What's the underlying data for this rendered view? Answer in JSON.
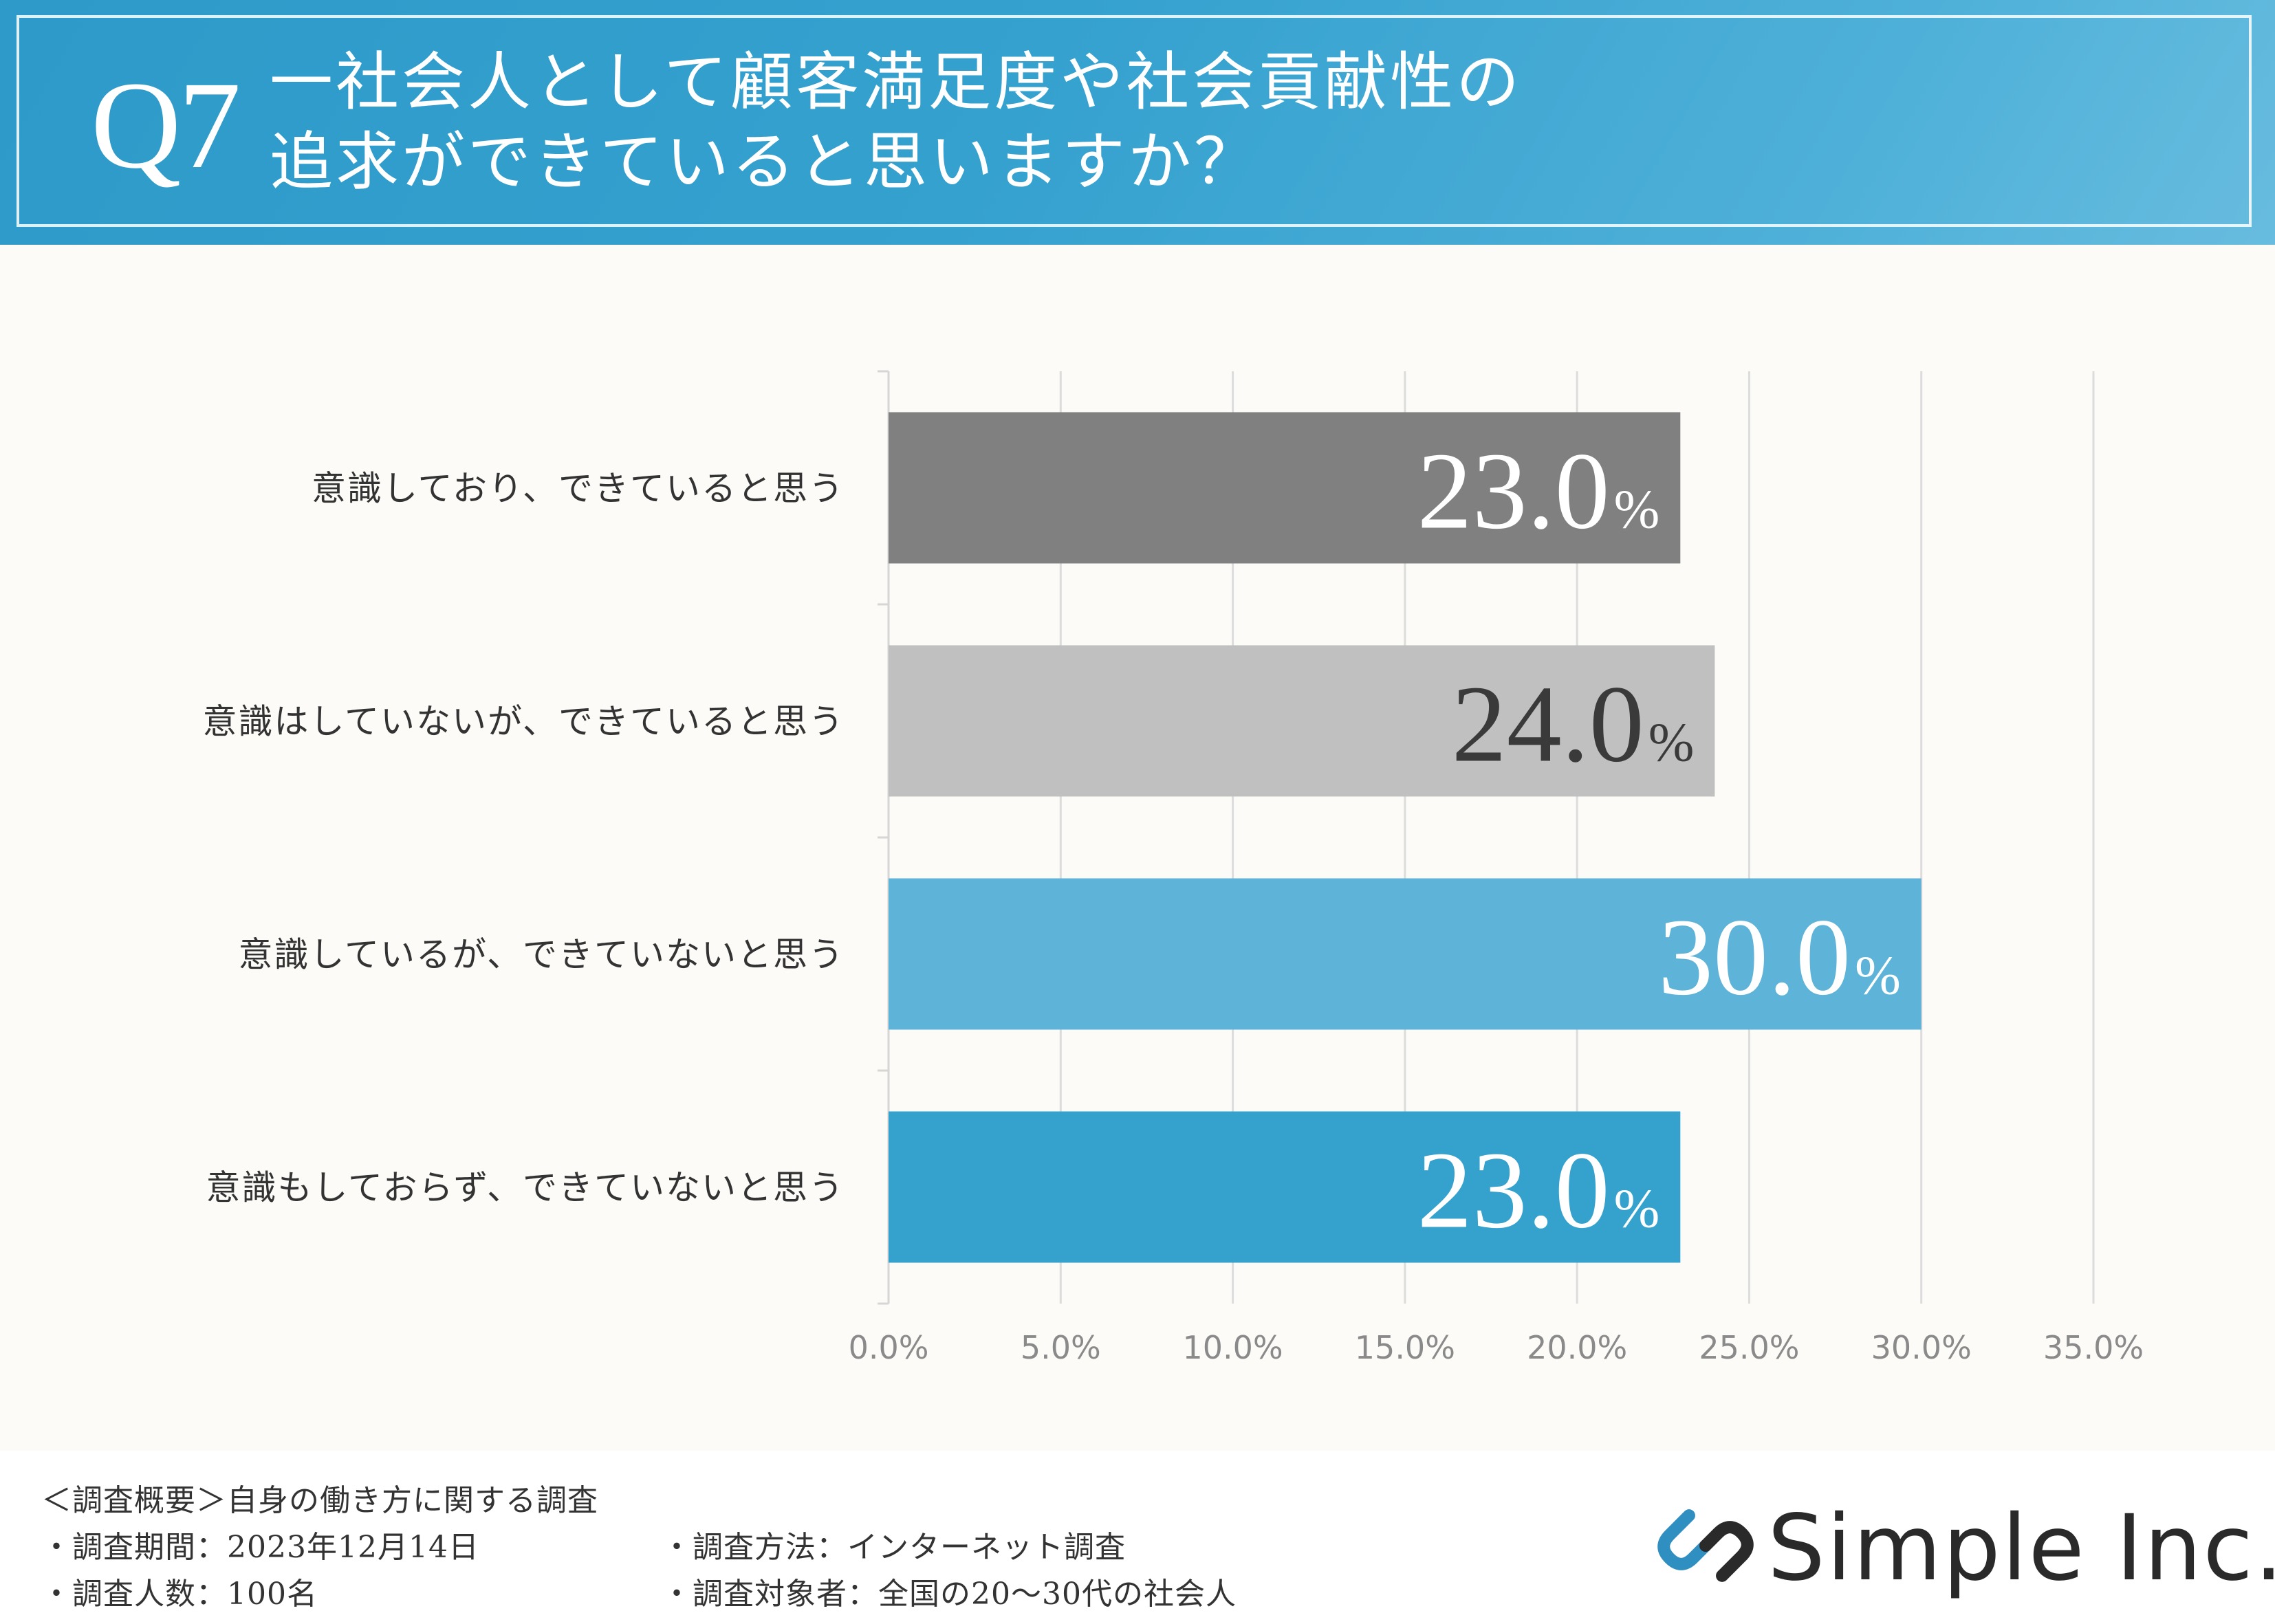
{
  "header": {
    "q_number": "Q7",
    "question_line1": "一社会人として顧客満足度や社会貢献性の",
    "question_line2": "追求ができていると思いますか？"
  },
  "chart_data": {
    "type": "bar",
    "orientation": "horizontal",
    "categories": [
      "意識しており、できていると思う",
      "意識はしていないが、できていると思う",
      "意識しているが、できていないと思う",
      "意識もしておらず、できていないと思う"
    ],
    "values": [
      23.0,
      24.0,
      30.0,
      23.0
    ],
    "value_labels": [
      "23.0",
      "24.0",
      "30.0",
      "23.0"
    ],
    "value_unit": "%",
    "bar_colors": [
      "#808080",
      "#c0c0c0",
      "#5eb3d8",
      "#35a1cd"
    ],
    "label_colors": [
      "#ffffff",
      "#3a3a3a",
      "#ffffff",
      "#ffffff"
    ],
    "xlim": [
      0,
      35
    ],
    "xticks": [
      0,
      5,
      10,
      15,
      20,
      25,
      30,
      35
    ],
    "xtick_labels": [
      "0.0%",
      "5.0%",
      "10.0%",
      "15.0%",
      "20.0%",
      "25.0%",
      "30.0%",
      "35.0%"
    ],
    "grid": true,
    "legend": false
  },
  "footer": {
    "survey_title": "＜調査概要＞自身の働き方に関する調査",
    "period": "・調査期間：2023年12月14日",
    "respondents": "・調査人数：100名",
    "method": "・調査方法：インターネット調査",
    "target": "・調査対象者：全国の20〜30代の社会人"
  },
  "logo": {
    "text": "Simple Inc.",
    "icon": "simple-logo-icon",
    "icon_colors": [
      "#2f8fc0",
      "#2a2a2a"
    ]
  }
}
